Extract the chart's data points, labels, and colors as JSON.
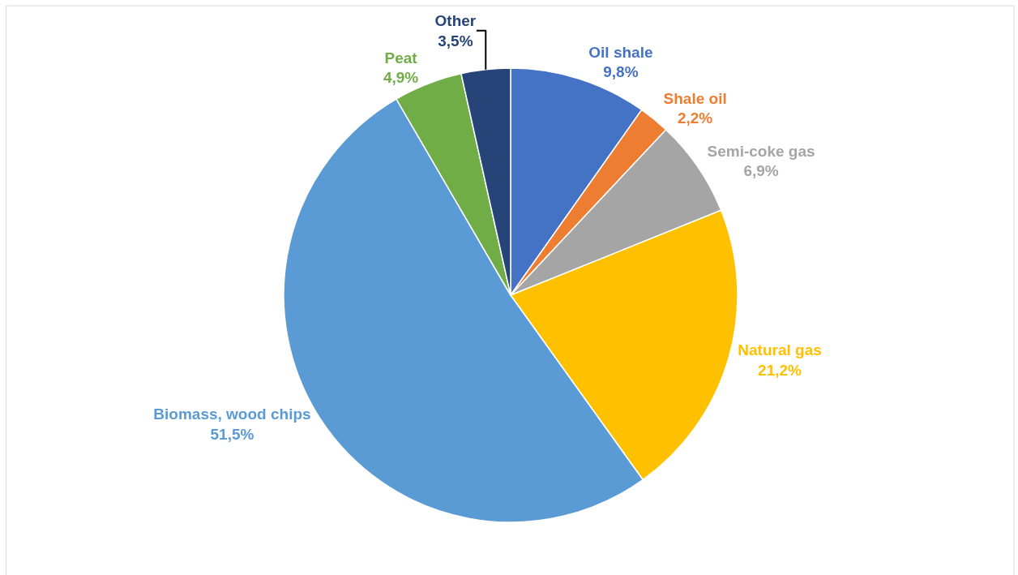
{
  "chart_data": {
    "type": "pie",
    "categories": [
      "Oil shale",
      "Shale oil",
      "Semi-coke gas",
      "Natural gas",
      "Biomass, wood chips",
      "Peat",
      "Other"
    ],
    "values": [
      9.8,
      2.2,
      6.9,
      21.2,
      51.5,
      4.9,
      3.5
    ],
    "value_labels": [
      "9,8%",
      "2,2%",
      "6,9%",
      "21,2%",
      "51,5%",
      "4,9%",
      "3,5%"
    ],
    "colors": [
      "#4472c4",
      "#ed7d31",
      "#a5a5a5",
      "#ffc000",
      "#5b9bd5",
      "#70ad47",
      "#264478"
    ],
    "legend": false
  }
}
